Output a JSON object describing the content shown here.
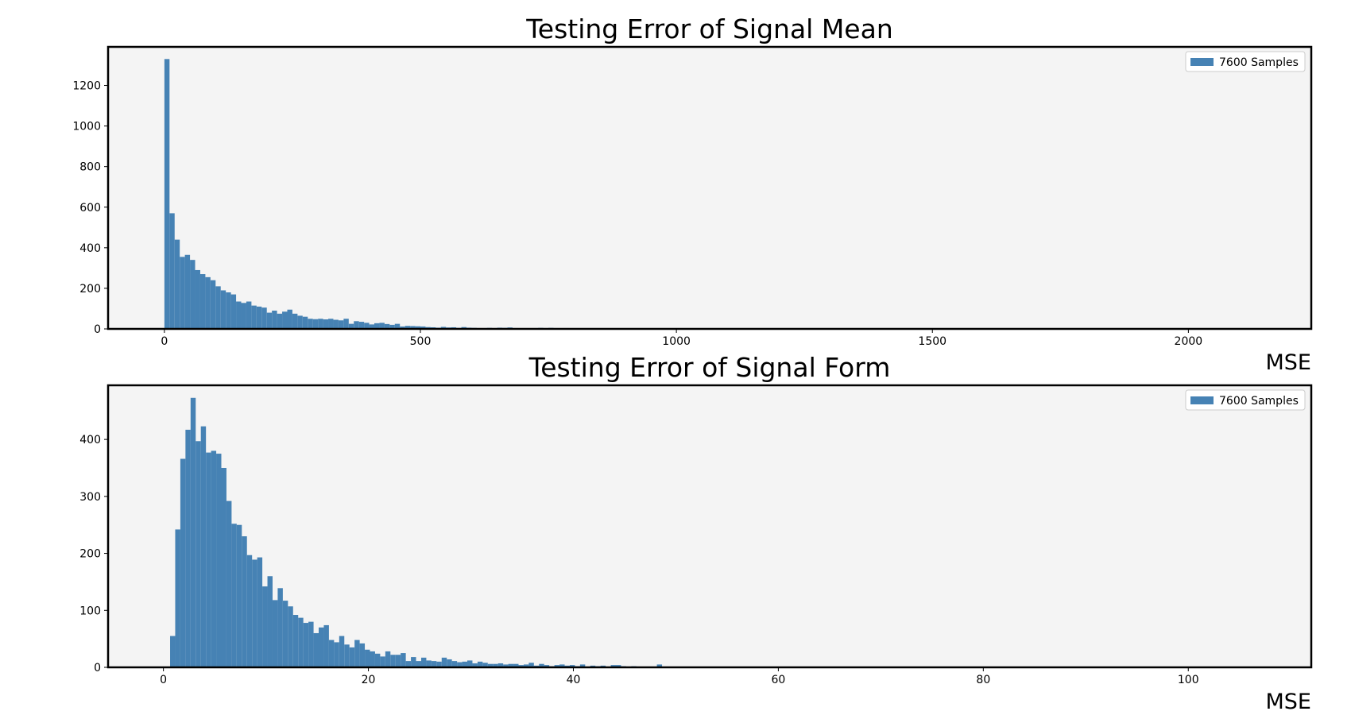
{
  "chart_data": [
    {
      "type": "bar",
      "title": "Testing Error of Signal Mean",
      "xlabel": "MSE",
      "ylabel": "",
      "xlim": [
        -110,
        2240
      ],
      "ylim": [
        0,
        1390
      ],
      "xticks": [
        0,
        500,
        1000,
        1500,
        2000
      ],
      "yticks": [
        0,
        200,
        400,
        600,
        800,
        1000,
        1200
      ],
      "grid": false,
      "legend_position": "top-right",
      "colors": {
        "bar": "#4682b4",
        "plot_bg": "#f4f4f4"
      },
      "bin_start": 0,
      "bin_width": 10,
      "series": [
        {
          "name": "7600 Samples",
          "values": [
            1330,
            570,
            440,
            355,
            365,
            340,
            290,
            270,
            255,
            240,
            210,
            190,
            180,
            170,
            135,
            128,
            135,
            115,
            110,
            105,
            80,
            90,
            75,
            85,
            95,
            75,
            65,
            60,
            50,
            48,
            50,
            47,
            50,
            45,
            42,
            50,
            25,
            38,
            35,
            30,
            22,
            28,
            30,
            24,
            20,
            25,
            12,
            15,
            14,
            13,
            12,
            9,
            8,
            6,
            10,
            7,
            8,
            5,
            9,
            6,
            5,
            4,
            3,
            5,
            4,
            6,
            5,
            7,
            4,
            3,
            2,
            2,
            3,
            5,
            2,
            5,
            2,
            3,
            4,
            2,
            1,
            2,
            2,
            3,
            1,
            2,
            1,
            1,
            2,
            1,
            1,
            1,
            0,
            0,
            0,
            0
          ]
        }
      ]
    },
    {
      "type": "bar",
      "title": "Testing Error of Signal Form",
      "xlabel": "MSE",
      "ylabel": "",
      "xlim": [
        -5.4,
        112
      ],
      "ylim": [
        0,
        495
      ],
      "xticks": [
        0,
        20,
        40,
        60,
        80,
        100
      ],
      "yticks": [
        0,
        100,
        200,
        300,
        400
      ],
      "grid": false,
      "legend_position": "top-right",
      "colors": {
        "bar": "#4682b4",
        "plot_bg": "#f4f4f4"
      },
      "bin_start": 0.65,
      "bin_width": 0.5,
      "series": [
        {
          "name": "7600 Samples",
          "values": [
            55,
            242,
            366,
            417,
            473,
            397,
            423,
            377,
            380,
            375,
            350,
            292,
            252,
            250,
            230,
            197,
            189,
            193,
            142,
            160,
            118,
            139,
            117,
            107,
            92,
            87,
            78,
            80,
            60,
            70,
            74,
            48,
            44,
            55,
            40,
            35,
            48,
            42,
            31,
            28,
            24,
            19,
            28,
            22,
            22,
            25,
            11,
            18,
            11,
            17,
            12,
            11,
            10,
            17,
            14,
            11,
            9,
            10,
            12,
            7,
            10,
            8,
            6,
            6,
            7,
            5,
            6,
            6,
            4,
            5,
            8,
            3,
            6,
            4,
            2,
            4,
            5,
            3,
            4,
            2,
            5,
            1,
            3,
            2,
            3,
            1,
            4,
            4,
            2,
            1,
            2,
            1,
            1,
            1,
            1,
            5,
            1,
            0,
            1,
            0,
            0,
            0,
            1,
            0,
            0,
            0,
            1
          ]
        }
      ]
    }
  ]
}
